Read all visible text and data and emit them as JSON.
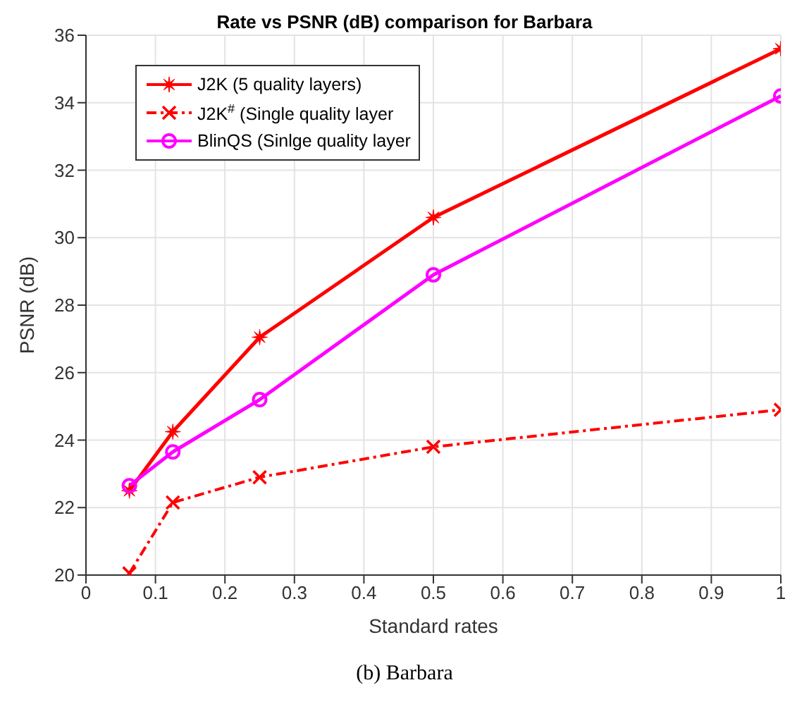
{
  "chart_data": {
    "type": "line",
    "title": "Rate vs PSNR (dB) comparison for Barbara",
    "xlabel": "Standard rates",
    "ylabel": "PSNR (dB)",
    "x": [
      0.0625,
      0.125,
      0.25,
      0.5,
      1
    ],
    "series": [
      {
        "name": "J2K (5 quality layers)",
        "color": "#ff0000",
        "values": [
          22.5,
          24.25,
          27.05,
          30.6,
          35.6
        ],
        "marker": "star",
        "line_style": "solid"
      },
      {
        "name": "J2K$^{#}$ (Single quality layer",
        "color": "#ff0000",
        "values": [
          20.05,
          22.15,
          22.9,
          23.8,
          24.9
        ],
        "marker": "cross",
        "line_style": "dashed"
      },
      {
        "name": "BlinQS (Sinlge quality layer",
        "color": "#ff00ff",
        "values": [
          22.65,
          23.65,
          25.2,
          28.9,
          34.2
        ],
        "marker": "circle",
        "line_style": "solid"
      }
    ],
    "xlim": [
      0,
      1
    ],
    "xticks": [
      0,
      0.1,
      0.2,
      0.3,
      0.4,
      0.5,
      0.6,
      0.7,
      0.8,
      0.9,
      1
    ],
    "ylim": [
      20,
      36
    ],
    "yticks": [
      20,
      22,
      24,
      26,
      28,
      30,
      32,
      34,
      36
    ],
    "grid": true,
    "legend": "top left",
    "annotations": [
      "(b)  Barbara"
    ]
  }
}
